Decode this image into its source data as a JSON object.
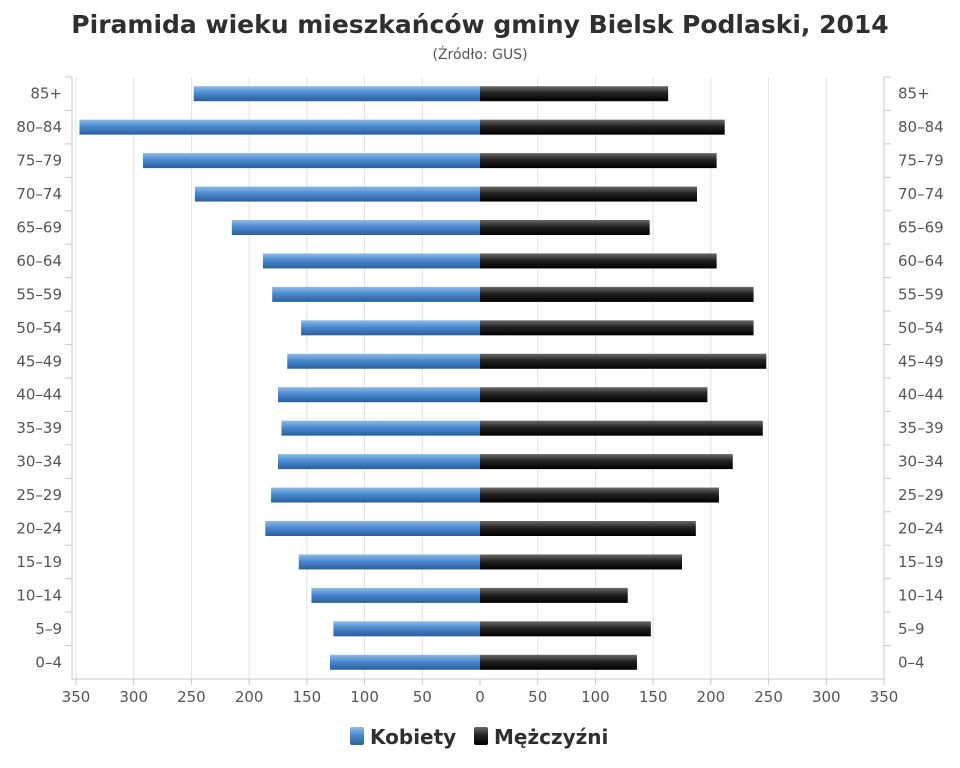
{
  "chart_data": {
    "type": "bar",
    "orientation": "horizontal-pyramid",
    "title": "Piramida wieku mieszkańców gminy Bielsk Podlaski, 2014",
    "subtitle": "(Źródło: GUS)",
    "categories": [
      "0–4",
      "5–9",
      "10–14",
      "15–19",
      "20–24",
      "25–29",
      "30–34",
      "35–39",
      "40–44",
      "45–49",
      "50–54",
      "55–59",
      "60–64",
      "65–69",
      "70–74",
      "75–79",
      "80–84",
      "85+"
    ],
    "series": [
      {
        "name": "Kobiety",
        "side": "left",
        "color": "#3d7cc1",
        "values": [
          130,
          127,
          146,
          157,
          186,
          181,
          175,
          172,
          175,
          167,
          155,
          180,
          188,
          215,
          247,
          292,
          347,
          248
        ]
      },
      {
        "name": "Mężczyźni",
        "side": "right",
        "color": "#1a1a1a",
        "values": [
          136,
          148,
          128,
          175,
          187,
          207,
          219,
          245,
          197,
          248,
          237,
          237,
          205,
          147,
          188,
          205,
          212,
          163
        ]
      }
    ],
    "x_ticks": [
      "350",
      "300",
      "250",
      "200",
      "150",
      "100",
      "50",
      "0",
      "50",
      "100",
      "150",
      "200",
      "250",
      "300",
      "350"
    ],
    "xlim": [
      -350,
      350
    ],
    "grid": true,
    "legend_position": "bottom-center"
  }
}
